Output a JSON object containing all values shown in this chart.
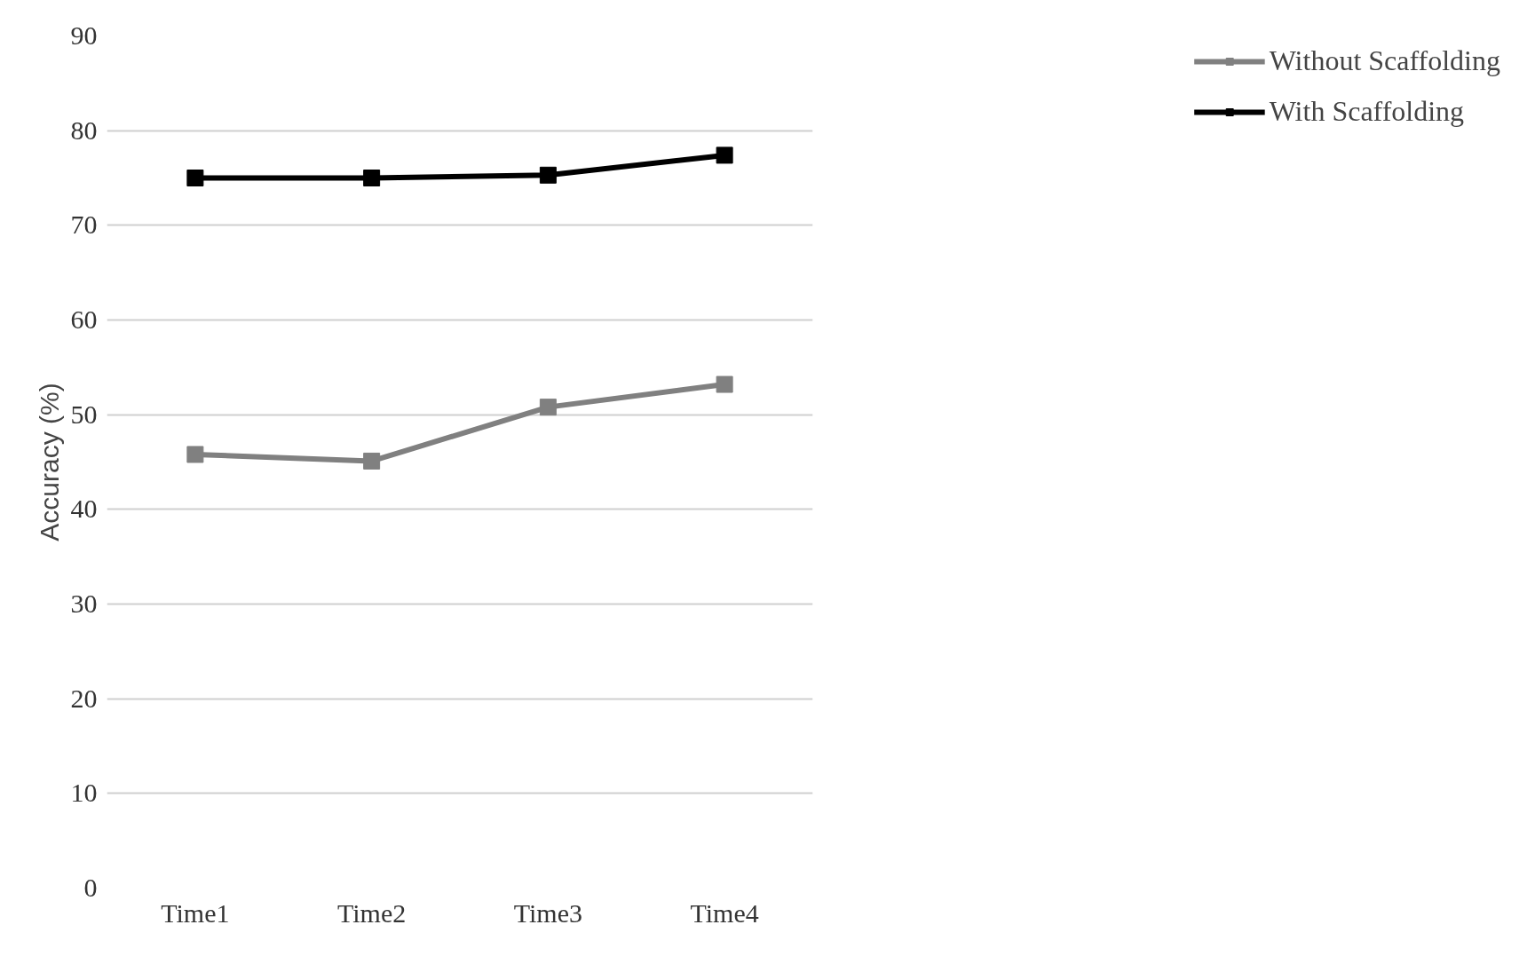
{
  "chart_data": {
    "type": "line",
    "ylabel": "Accuracy (%)",
    "categories": [
      "Time1",
      "Time2",
      "Time3",
      "Time4"
    ],
    "series": [
      {
        "name": "Without Scaffolding",
        "color": "#808080",
        "values": [
          45.8,
          45.1,
          50.8,
          53.2
        ]
      },
      {
        "name": "With Scaffolding",
        "color": "#000000",
        "values": [
          75,
          75,
          75.3,
          77.4
        ]
      }
    ],
    "ylim": [
      0,
      90
    ],
    "yticks": [
      0,
      10,
      20,
      30,
      40,
      50,
      60,
      70,
      80,
      90
    ],
    "grid": "y",
    "legend": "right",
    "marker": "square",
    "line_style": "solid"
  }
}
